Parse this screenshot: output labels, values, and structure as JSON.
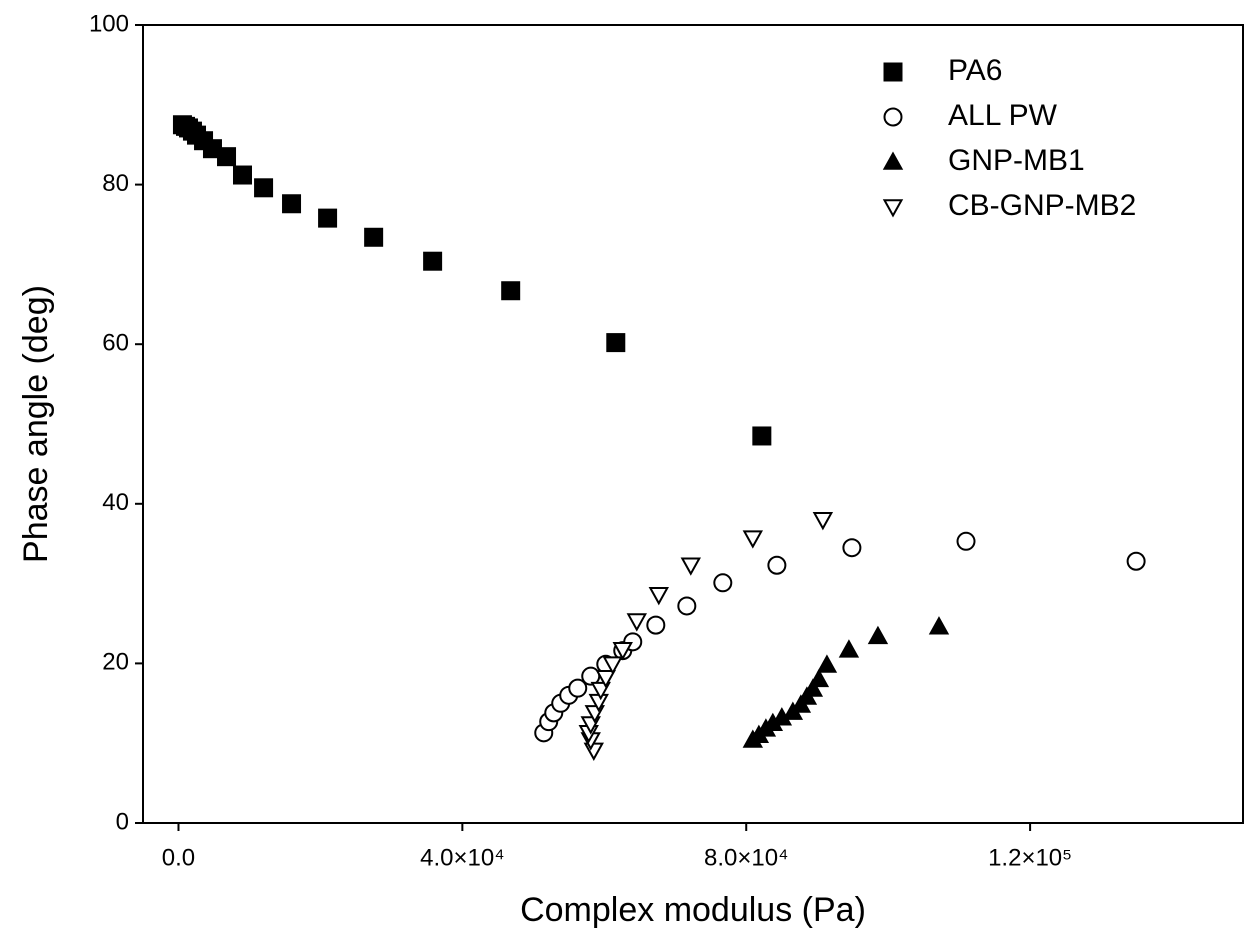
{
  "chart_data": {
    "type": "scatter",
    "x_label": "Complex modulus (Pa)",
    "y_label": "Phase angle (deg)",
    "xlim": [
      -5000,
      150000
    ],
    "ylim": [
      0,
      100
    ],
    "xticks": [
      {
        "value": 0,
        "label": "0.0"
      },
      {
        "value": 40000,
        "label": "4.0×10⁴"
      },
      {
        "value": 80000,
        "label": "8.0×10⁴"
      },
      {
        "value": 120000,
        "label": "1.2×10⁵"
      }
    ],
    "yticks": [
      0,
      20,
      40,
      60,
      80,
      100
    ],
    "legend": "upper right",
    "series": [
      {
        "name": "PA6",
        "color": "#000000",
        "marker": "square",
        "filled": true,
        "x": [
          560,
          990,
          1410,
          1970,
          2540,
          3530,
          4790,
          6770,
          9020,
          11990,
          15930,
          21010,
          27500,
          35810,
          46810,
          61620,
          82200
        ],
        "values": [
          87.5,
          87.3,
          87.1,
          86.7,
          86.2,
          85.5,
          84.5,
          83.5,
          81.2,
          79.6,
          77.6,
          75.8,
          73.4,
          70.4,
          66.7,
          60.2,
          48.5
        ]
      },
      {
        "name": "ALL PW",
        "color": "#000000",
        "marker": "circle",
        "filled": false,
        "x": [
          51470,
          52170,
          52880,
          53860,
          54990,
          56260,
          58090,
          60210,
          62600,
          64010,
          67260,
          71630,
          76700,
          84320,
          94890,
          110970,
          134940
        ],
        "values": [
          11.3,
          12.7,
          13.8,
          15.0,
          16.0,
          16.9,
          18.4,
          19.9,
          21.6,
          22.7,
          24.8,
          27.2,
          30.1,
          32.3,
          34.5,
          35.3,
          32.8
        ]
      },
      {
        "name": "GNP-MB1",
        "color": "#000000",
        "marker": "triangle",
        "filled": true,
        "x": [
          80930,
          81780,
          82770,
          83750,
          85020,
          86570,
          87700,
          88550,
          89390,
          90240,
          91370,
          94470,
          98560,
          107160
        ],
        "values": [
          10.4,
          11.0,
          11.8,
          12.5,
          13.2,
          13.9,
          14.8,
          15.8,
          16.8,
          18.0,
          19.8,
          21.7,
          23.4,
          24.6
        ]
      },
      {
        "name": "CB-GNP-MB2",
        "color": "#000000",
        "marker": "triangle-down",
        "filled": false,
        "x": [
          58520,
          58090,
          57810,
          58090,
          58660,
          59220,
          59500,
          60210,
          61190,
          62600,
          64580,
          67680,
          72190,
          80930,
          90800
        ],
        "values": [
          9.1,
          10.4,
          11.3,
          12.4,
          13.8,
          15.2,
          16.7,
          18.2,
          19.9,
          21.7,
          25.3,
          28.6,
          32.3,
          35.7,
          38.0
        ]
      }
    ]
  }
}
